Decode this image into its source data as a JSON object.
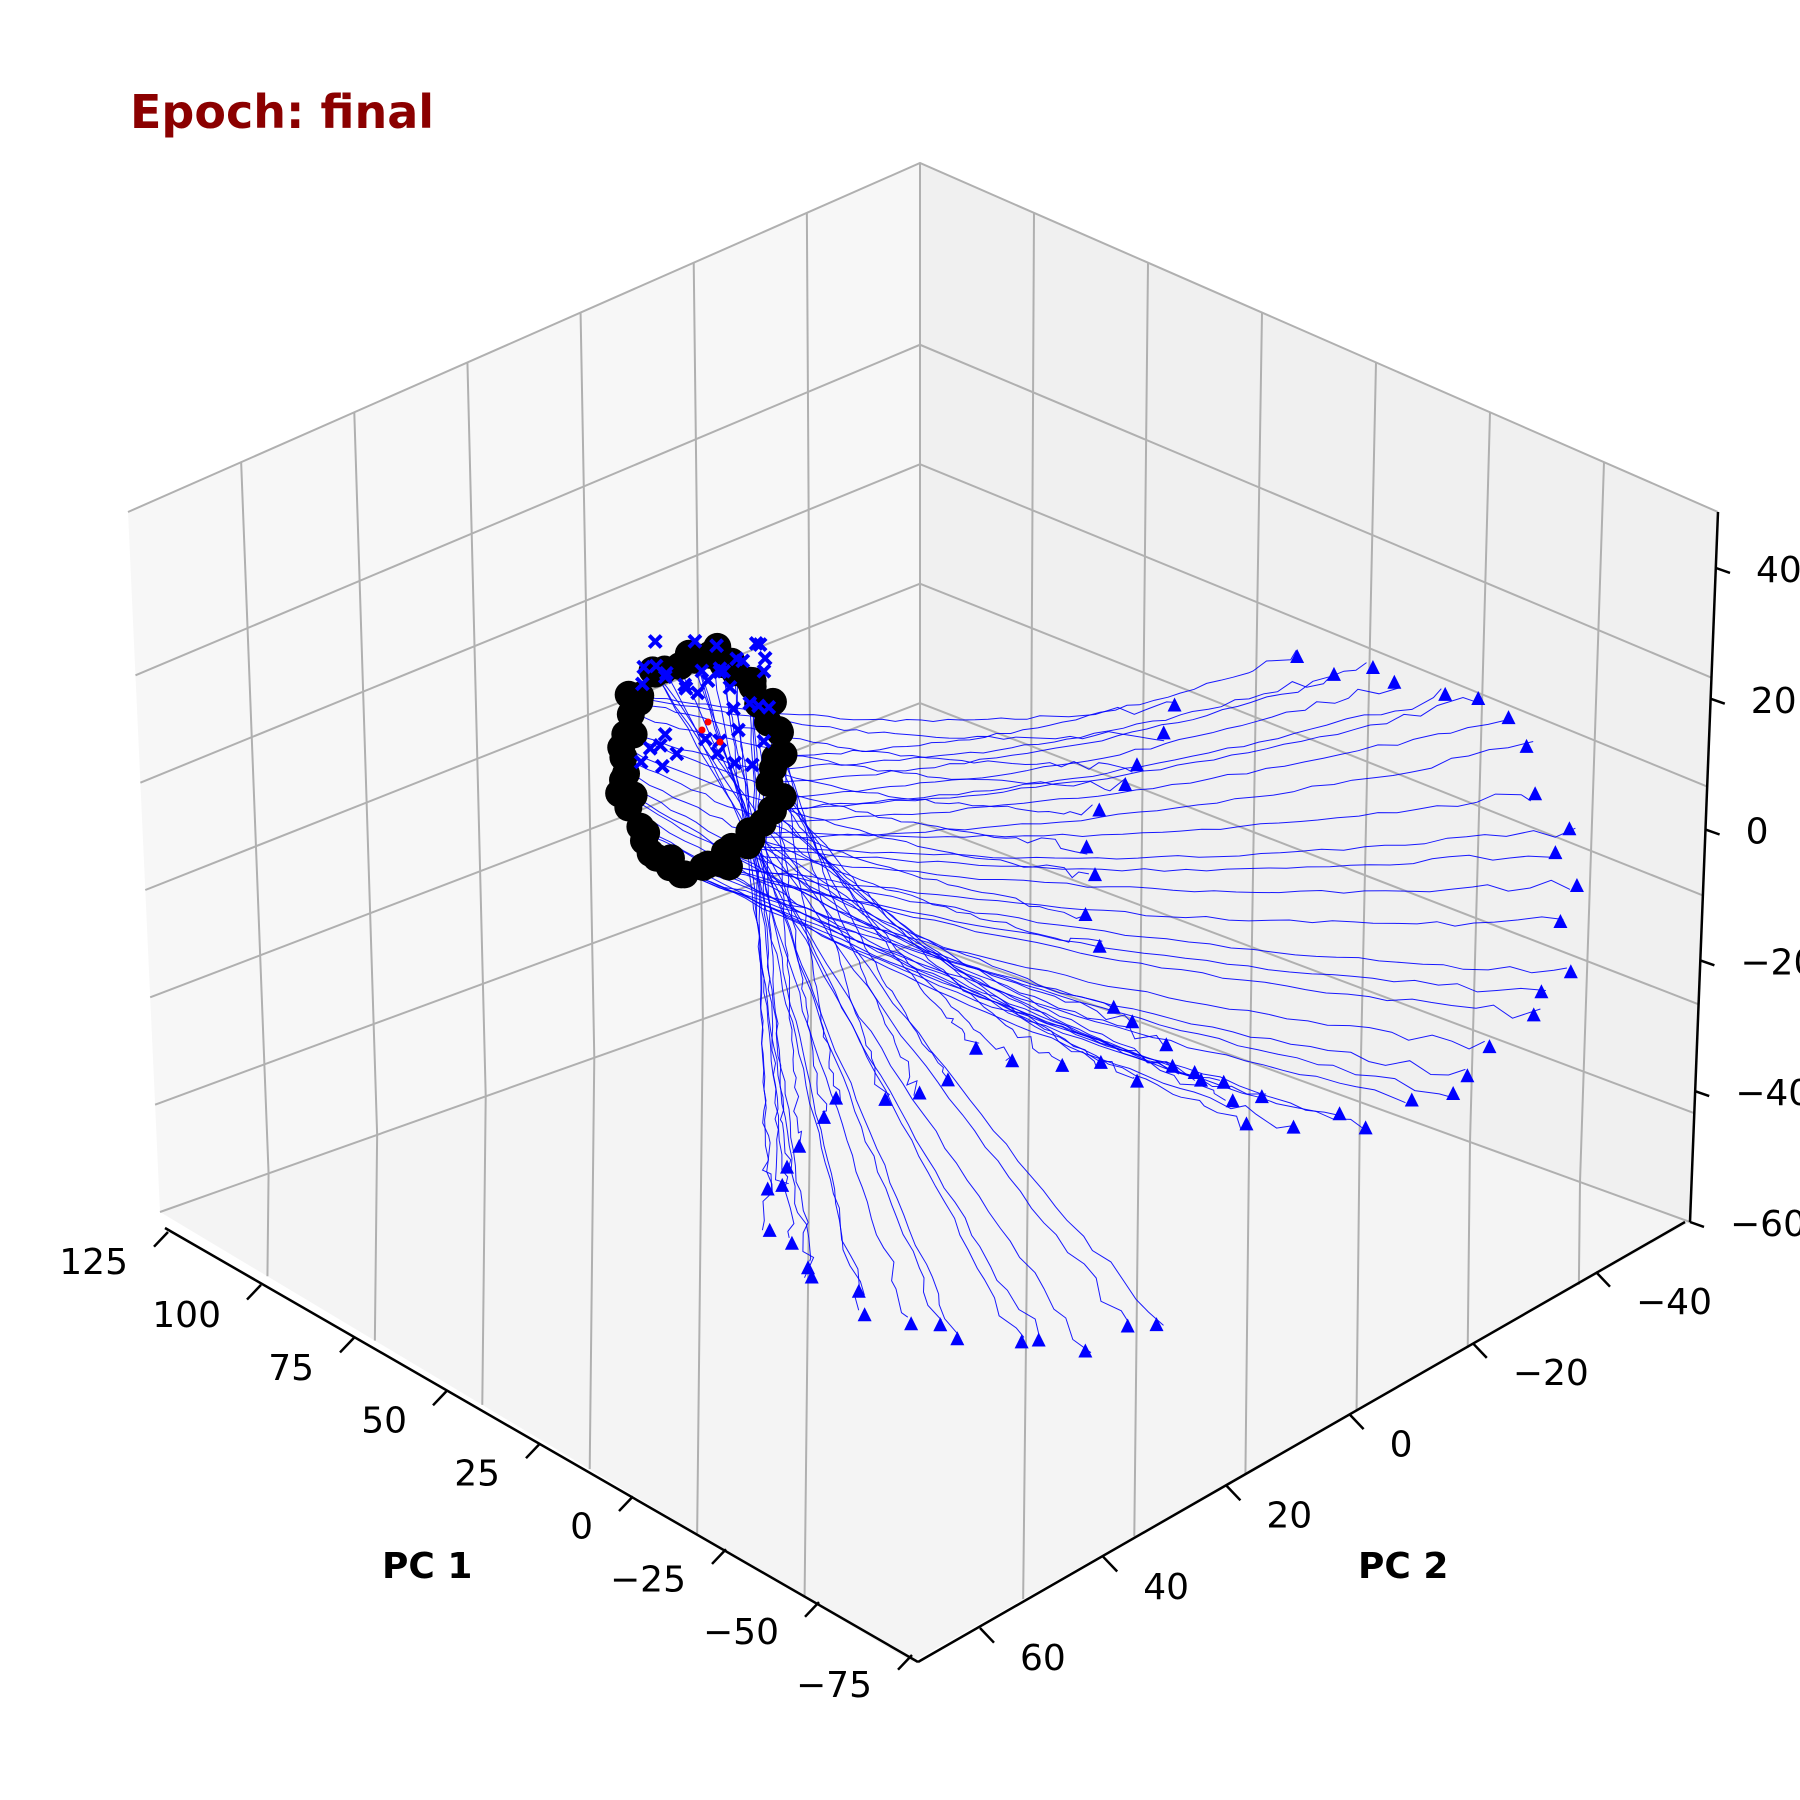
{
  "chart_data": {
    "type": "scatter",
    "projection": "3d",
    "title": "Epoch: final",
    "xlabel": "PC 1",
    "ylabel": "PC 2",
    "zlabel": "",
    "x_ticks": [
      125,
      100,
      75,
      50,
      25,
      0,
      -25,
      -50,
      -75
    ],
    "y_ticks": [
      60,
      40,
      20,
      0,
      -20,
      -40
    ],
    "z_ticks": [
      40,
      20,
      0,
      -20,
      -40,
      -60
    ],
    "xlim": [
      -75,
      130
    ],
    "ylim": [
      -50,
      65
    ],
    "zlim": [
      -60,
      55
    ],
    "grid": true,
    "colors": {
      "title": "#8b0000",
      "trajectory": "#0000ff",
      "start_marker": "#000000",
      "end_marker": "#0000ff",
      "center_marker": "#ff0000"
    },
    "series": [
      {
        "marker": "circle",
        "color": "#000000",
        "role": "trajectory start",
        "count": 60
      },
      {
        "marker": "x",
        "color": "#0000ff",
        "role": "trajectory points near start",
        "count": 40
      },
      {
        "marker": "triangle",
        "color": "#0000ff",
        "role": "trajectory end",
        "count": 70
      },
      {
        "marker": "dot",
        "color": "#ff0000",
        "role": "center",
        "count": 3
      }
    ]
  }
}
